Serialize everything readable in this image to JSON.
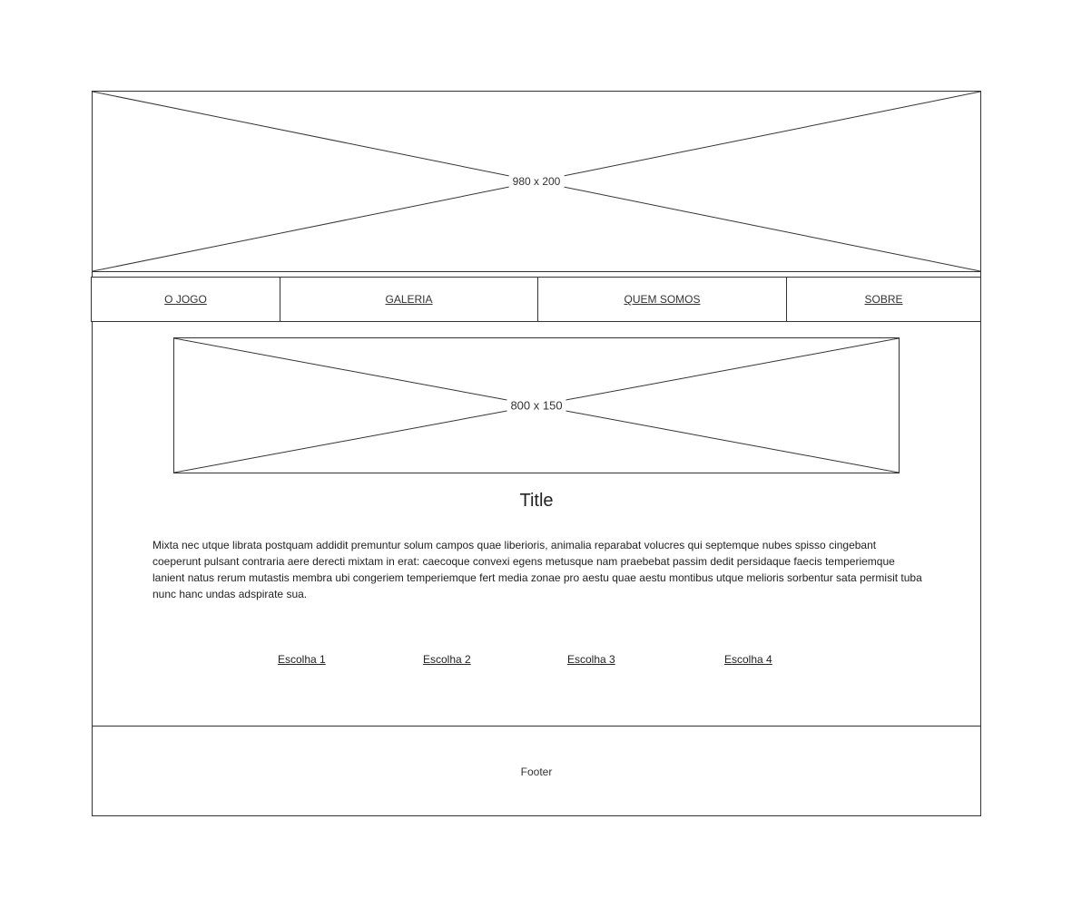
{
  "header_image": {
    "label": "980 x 200"
  },
  "nav": {
    "items": [
      {
        "label": "O JOGO"
      },
      {
        "label": "GALERIA"
      },
      {
        "label": "QUEM SOMOS"
      },
      {
        "label": "SOBRE"
      }
    ]
  },
  "banner_image": {
    "label": "800 x 150"
  },
  "main": {
    "title": "Title",
    "body": "Mixta nec utque librata postquam addidit premuntur solum campos quae liberioris, animalia reparabat volucres qui septemque nubes spisso cingebant coeperunt pulsant contraria aere derecti mixtam in erat: caecoque convexi egens metusque nam praebebat passim dedit persidaque faecis temperiemque lanient natus rerum mutastis membra ubi congeriem temperiemque fert media zonae pro aestu quae aestu montibus utque melioris sorbentur sata permisit tuba nunc hanc undas adspirate sua."
  },
  "choices": [
    {
      "label": "Escolha 1"
    },
    {
      "label": "Escolha 2"
    },
    {
      "label": "Escolha 3"
    },
    {
      "label": "Escolha 4"
    }
  ],
  "footer": {
    "label": "Footer"
  }
}
